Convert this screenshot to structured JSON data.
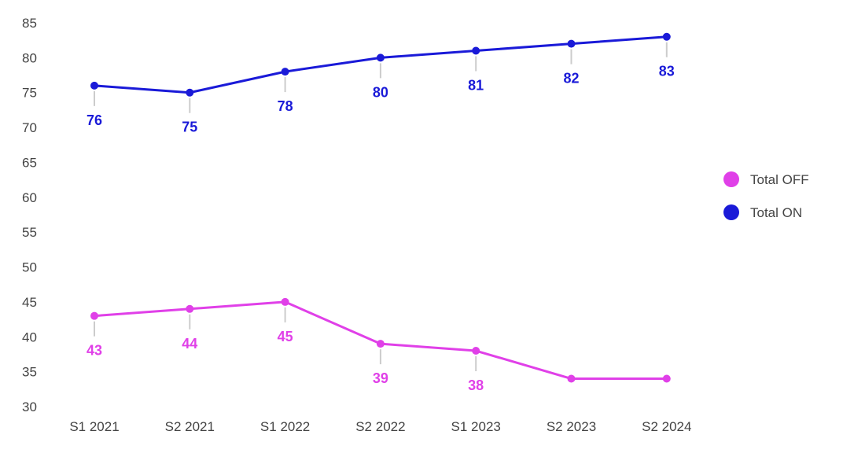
{
  "chart_data": {
    "type": "line",
    "title": "",
    "xlabel": "",
    "ylabel": "",
    "categories": [
      "S1 2021",
      "S2 2021",
      "S1 2022",
      "S2 2022",
      "S1 2023",
      "S2 2023",
      "S2 2024"
    ],
    "ylim": [
      30,
      85
    ],
    "yticks": [
      "30",
      "35",
      "40",
      "45",
      "50",
      "55",
      "60",
      "65",
      "70",
      "75",
      "80",
      "85"
    ],
    "grid": false,
    "legend_position": "right",
    "series": [
      {
        "name": "Total OFF",
        "color": "#e040e8",
        "values": [
          43,
          44,
          45,
          39,
          38,
          34,
          34
        ],
        "labels": [
          "43",
          "44",
          "45",
          "39",
          "38",
          "",
          ""
        ],
        "label_side": "below"
      },
      {
        "name": "Total ON",
        "color": "#1a1ad8",
        "values": [
          76,
          75,
          78,
          80,
          81,
          82,
          83
        ],
        "labels": [
          "76",
          "75",
          "78",
          "80",
          "81",
          "82",
          "83"
        ],
        "label_side": "below"
      }
    ]
  }
}
